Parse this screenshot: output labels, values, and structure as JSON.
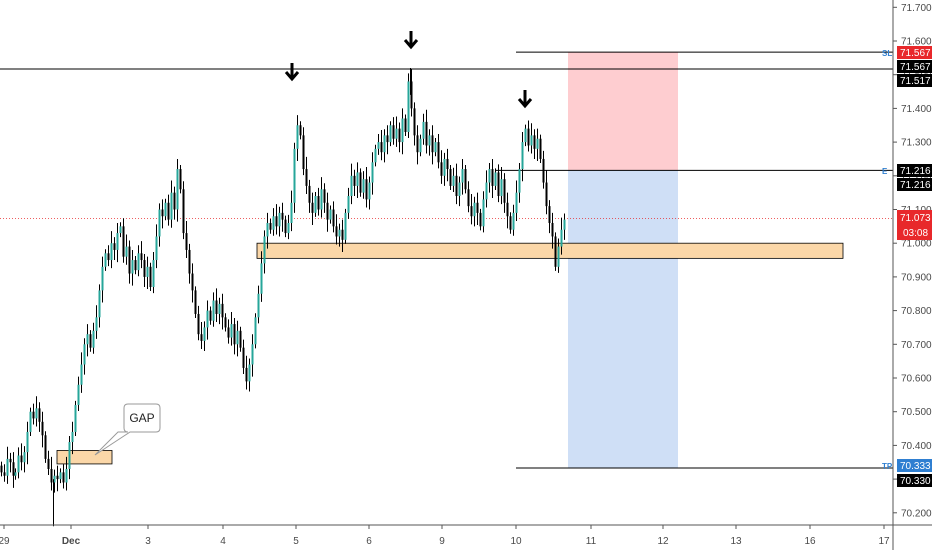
{
  "chart_data": {
    "type": "candlestick",
    "y_ticks": [
      "71.700",
      "71.600",
      "71.500",
      "71.400",
      "71.300",
      "71.200",
      "71.100",
      "71.000",
      "70.900",
      "70.800",
      "70.700",
      "70.600",
      "70.500",
      "70.400",
      "70.300",
      "70.200"
    ],
    "x_ticks": [
      "29",
      "Dec",
      "3",
      "4",
      "5",
      "6",
      "9",
      "10",
      "11",
      "12",
      "13",
      "16",
      "17"
    ],
    "ylim": [
      70.16,
      71.73
    ],
    "price_path": [
      [
        0,
        70.34
      ],
      [
        3,
        70.32
      ],
      [
        6,
        70.31
      ],
      [
        9,
        70.36
      ],
      [
        12,
        70.35
      ],
      [
        14,
        70.31
      ],
      [
        17,
        70.32
      ],
      [
        20,
        70.37
      ],
      [
        23,
        70.35
      ],
      [
        26,
        70.38
      ],
      [
        29,
        70.44
      ],
      [
        32,
        70.5
      ],
      [
        35,
        70.48
      ],
      [
        38,
        70.51
      ],
      [
        41,
        70.47
      ],
      [
        44,
        70.43
      ],
      [
        47,
        70.36
      ],
      [
        50,
        70.33
      ],
      [
        53,
        70.29
      ],
      [
        56,
        70.31
      ],
      [
        59,
        70.3
      ],
      [
        62,
        70.32
      ],
      [
        65,
        70.29
      ],
      [
        68,
        70.33
      ],
      [
        71,
        70.41
      ],
      [
        74,
        70.44
      ],
      [
        77,
        70.52
      ],
      [
        80,
        70.58
      ],
      [
        83,
        70.64
      ],
      [
        86,
        70.7
      ],
      [
        89,
        70.73
      ],
      [
        92,
        70.69
      ],
      [
        95,
        70.74
      ],
      [
        98,
        70.78
      ],
      [
        101,
        70.86
      ],
      [
        104,
        70.93
      ],
      [
        107,
        70.97
      ],
      [
        110,
        70.95
      ],
      [
        113,
        71.0
      ],
      [
        116,
        70.98
      ],
      [
        119,
        71.03
      ],
      [
        122,
        71.05
      ],
      [
        125,
        70.96
      ],
      [
        128,
        70.99
      ],
      [
        131,
        70.91
      ],
      [
        134,
        70.95
      ],
      [
        137,
        70.92
      ],
      [
        140,
        70.97
      ],
      [
        143,
        70.95
      ],
      [
        146,
        70.9
      ],
      [
        149,
        70.93
      ],
      [
        152,
        70.87
      ],
      [
        155,
        70.95
      ],
      [
        158,
        71.02
      ],
      [
        161,
        71.1
      ],
      [
        164,
        71.08
      ],
      [
        167,
        71.12
      ],
      [
        170,
        71.07
      ],
      [
        173,
        71.15
      ],
      [
        176,
        71.1
      ],
      [
        179,
        71.22
      ],
      [
        182,
        71.16
      ],
      [
        185,
        71.03
      ],
      [
        188,
        70.98
      ],
      [
        191,
        70.91
      ],
      [
        194,
        70.86
      ],
      [
        197,
        70.79
      ],
      [
        200,
        70.73
      ],
      [
        203,
        70.71
      ],
      [
        206,
        70.75
      ],
      [
        209,
        70.8
      ],
      [
        212,
        70.77
      ],
      [
        215,
        70.83
      ],
      [
        218,
        70.79
      ],
      [
        221,
        70.82
      ],
      [
        224,
        70.78
      ],
      [
        227,
        70.75
      ],
      [
        230,
        70.72
      ],
      [
        233,
        70.76
      ],
      [
        236,
        70.7
      ],
      [
        239,
        70.74
      ],
      [
        242,
        70.69
      ],
      [
        245,
        70.63
      ],
      [
        248,
        70.59
      ],
      [
        251,
        70.64
      ],
      [
        254,
        70.7
      ],
      [
        257,
        70.78
      ],
      [
        260,
        70.85
      ],
      [
        263,
        70.94
      ],
      [
        266,
        71.02
      ],
      [
        269,
        71.06
      ],
      [
        272,
        71.04
      ],
      [
        275,
        71.08
      ],
      [
        278,
        71.05
      ],
      [
        281,
        71.09
      ],
      [
        284,
        71.07
      ],
      [
        287,
        71.03
      ],
      [
        290,
        71.06
      ],
      [
        293,
        71.12
      ],
      [
        296,
        71.28
      ],
      [
        299,
        71.35
      ],
      [
        302,
        71.32
      ],
      [
        305,
        71.22
      ],
      [
        308,
        71.17
      ],
      [
        311,
        71.12
      ],
      [
        314,
        71.09
      ],
      [
        317,
        71.14
      ],
      [
        320,
        71.1
      ],
      [
        323,
        71.16
      ],
      [
        326,
        71.12
      ],
      [
        329,
        71.07
      ],
      [
        332,
        71.1
      ],
      [
        335,
        71.05
      ],
      [
        338,
        71.02
      ],
      [
        341,
        71.04
      ],
      [
        344,
        71.01
      ],
      [
        347,
        71.09
      ],
      [
        350,
        71.14
      ],
      [
        353,
        71.2
      ],
      [
        356,
        71.17
      ],
      [
        359,
        71.21
      ],
      [
        362,
        71.15
      ],
      [
        365,
        71.19
      ],
      [
        368,
        71.13
      ],
      [
        371,
        71.18
      ],
      [
        374,
        71.24
      ],
      [
        377,
        71.28
      ],
      [
        380,
        71.3
      ],
      [
        383,
        71.27
      ],
      [
        386,
        71.32
      ],
      [
        389,
        71.3
      ],
      [
        392,
        71.35
      ],
      [
        395,
        71.31
      ],
      [
        398,
        71.34
      ],
      [
        401,
        71.3
      ],
      [
        404,
        71.37
      ],
      [
        407,
        71.33
      ],
      [
        410,
        71.48
      ],
      [
        413,
        71.4
      ],
      [
        416,
        71.32
      ],
      [
        419,
        71.27
      ],
      [
        422,
        71.31
      ],
      [
        425,
        71.36
      ],
      [
        428,
        71.29
      ],
      [
        431,
        71.32
      ],
      [
        434,
        71.27
      ],
      [
        437,
        71.3
      ],
      [
        440,
        71.24
      ],
      [
        443,
        71.2
      ],
      [
        446,
        71.25
      ],
      [
        449,
        71.22
      ],
      [
        452,
        71.17
      ],
      [
        455,
        71.2
      ],
      [
        458,
        71.14
      ],
      [
        461,
        71.18
      ],
      [
        464,
        71.22
      ],
      [
        467,
        71.16
      ],
      [
        470,
        71.11
      ],
      [
        473,
        71.08
      ],
      [
        476,
        71.12
      ],
      [
        479,
        71.09
      ],
      [
        482,
        71.05
      ],
      [
        485,
        71.13
      ],
      [
        488,
        71.18
      ],
      [
        491,
        71.22
      ],
      [
        494,
        71.17
      ],
      [
        497,
        71.21
      ],
      [
        500,
        71.14
      ],
      [
        503,
        71.19
      ],
      [
        506,
        71.12
      ],
      [
        509,
        71.08
      ],
      [
        512,
        71.04
      ],
      [
        515,
        71.09
      ],
      [
        518,
        71.15
      ],
      [
        521,
        71.22
      ],
      [
        524,
        71.3
      ],
      [
        527,
        71.34
      ],
      [
        530,
        71.29
      ],
      [
        533,
        71.32
      ],
      [
        536,
        71.28
      ],
      [
        539,
        71.31
      ],
      [
        542,
        71.25
      ],
      [
        545,
        71.18
      ],
      [
        548,
        71.11
      ],
      [
        551,
        71.06
      ],
      [
        554,
        71.02
      ],
      [
        557,
        70.93
      ],
      [
        560,
        70.99
      ],
      [
        563,
        71.04
      ],
      [
        566,
        71.07
      ]
    ],
    "price_low": 70.16,
    "price_high": 71.52,
    "current_price": "71.073",
    "countdown": "03:08",
    "levels": [
      {
        "label": "SL",
        "value": 71.567,
        "value_text": "71.567",
        "tag_color": "#e8282b"
      },
      {
        "label": "",
        "value": 71.517,
        "value_text": "71.517",
        "tag_color": "#000000"
      },
      {
        "label": "E",
        "value": 71.216,
        "value_text": "71.216",
        "tag_color": "#000000"
      },
      {
        "label": "TP",
        "value": 70.333,
        "value_text": "70.333",
        "tag_color": "#2f7fd1"
      },
      {
        "label": "",
        "value": 70.33,
        "value_text": "70.330",
        "tag_color": "#000000"
      }
    ],
    "zones": [
      {
        "name": "stop-loss-zone",
        "from": 71.216,
        "to": 71.567,
        "color": "#fecdd0"
      },
      {
        "name": "take-profit-zone",
        "from": 70.333,
        "to": 71.216,
        "color": "#cfdff6"
      },
      {
        "name": "support-zone",
        "from": 70.955,
        "to": 71.0,
        "color": "#fbd7a8"
      },
      {
        "name": "gap-zone",
        "from": 70.345,
        "to": 70.385,
        "color": "#fbd7a8"
      }
    ],
    "annotations": {
      "gap_label": "GAP"
    },
    "colors": {
      "bull": "#26a69a",
      "bear": "#000000",
      "wick": "#000000",
      "current": "#e8282b"
    }
  }
}
